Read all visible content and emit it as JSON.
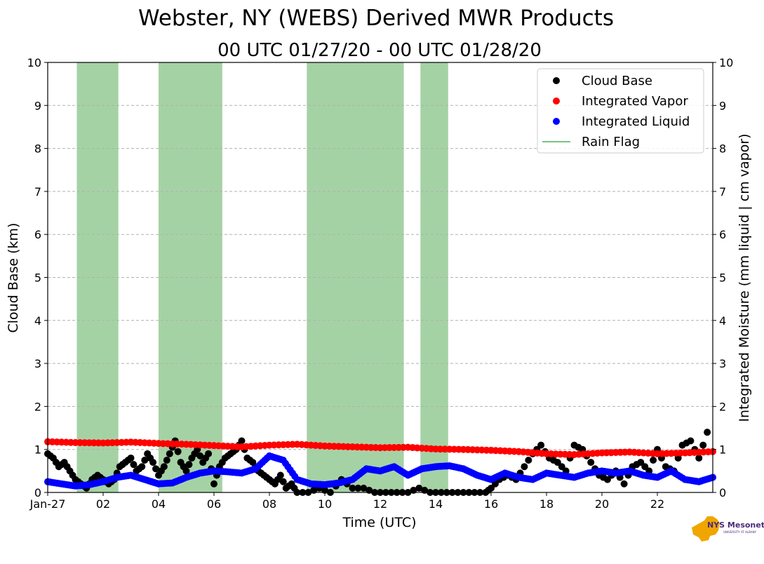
{
  "chart_data": {
    "type": "scatter",
    "title": "Webster, NY (WEBS) Derived MWR Products",
    "subtitle": "00 UTC 01/27/20 - 00 UTC 01/28/20",
    "xlabel": "Time (UTC)",
    "ylabel": "Cloud Base (km)",
    "y2label": "Integrated Moisture (mm liquid | cm vapor)",
    "xlim": [
      0,
      24
    ],
    "ylim": [
      0,
      10
    ],
    "y2lim": [
      0,
      10
    ],
    "x_tick_values": [
      0,
      2,
      4,
      6,
      8,
      10,
      12,
      14,
      16,
      18,
      20,
      22
    ],
    "x_tick_labels": [
      "Jan-27",
      "02",
      "04",
      "06",
      "08",
      "10",
      "12",
      "14",
      "16",
      "18",
      "20",
      "22"
    ],
    "y_ticks": [
      "0",
      "1",
      "2",
      "3",
      "4",
      "5",
      "6",
      "7",
      "8",
      "9",
      "10"
    ],
    "grid": "horizontal dashed",
    "legend_position": "top-right",
    "series": [
      {
        "name": "Cloud Base",
        "marker": "circle",
        "color": "#000000",
        "x": [
          0.0,
          0.2,
          0.4,
          0.6,
          0.8,
          1.0,
          1.2,
          1.4,
          1.6,
          1.8,
          2.0,
          2.2,
          2.4,
          2.6,
          2.8,
          3.0,
          3.2,
          3.4,
          3.6,
          3.8,
          4.0,
          4.2,
          4.4,
          4.6,
          4.8,
          5.0,
          5.2,
          5.4,
          5.6,
          5.8,
          6.0,
          6.2,
          6.4,
          6.6,
          6.8,
          7.0,
          7.2,
          7.4,
          7.6,
          7.8,
          8.0,
          8.2,
          8.4,
          8.6,
          8.8,
          9.0,
          9.4,
          9.8,
          10.2,
          10.6,
          11.0,
          11.4,
          11.8,
          12.2,
          12.6,
          13.0,
          13.4,
          13.8,
          14.2,
          14.6,
          15.0,
          15.4,
          15.8,
          16.0,
          16.3,
          16.6,
          16.9,
          17.2,
          17.5,
          17.8,
          18.1,
          18.4,
          18.7,
          19.0,
          19.3,
          19.6,
          19.9,
          20.2,
          20.5,
          20.8,
          21.1,
          21.4,
          21.7,
          22.0,
          22.3,
          22.6,
          22.9,
          23.2,
          23.5,
          23.8
        ],
        "y": [
          0.9,
          0.8,
          0.6,
          0.7,
          0.5,
          0.3,
          0.2,
          0.1,
          0.3,
          0.4,
          0.3,
          0.2,
          0.3,
          0.6,
          0.7,
          0.8,
          0.5,
          0.6,
          0.9,
          0.7,
          0.4,
          0.6,
          0.9,
          1.2,
          0.7,
          0.5,
          0.8,
          1.0,
          0.7,
          0.9,
          0.2,
          0.6,
          0.8,
          0.9,
          1.0,
          1.2,
          0.8,
          0.7,
          0.5,
          0.4,
          0.3,
          0.2,
          0.4,
          0.1,
          0.2,
          0.0,
          0.0,
          0.1,
          0.0,
          0.3,
          0.1,
          0.1,
          0.0,
          0.0,
          0.0,
          0.0,
          0.1,
          0.0,
          0.0,
          0.0,
          0.0,
          0.0,
          0.0,
          0.1,
          0.3,
          0.4,
          0.3,
          0.6,
          0.9,
          1.1,
          0.8,
          0.7,
          0.5,
          1.1,
          1.0,
          0.7,
          0.4,
          0.3,
          0.5,
          0.2,
          0.6,
          0.7,
          0.5,
          1.0,
          0.6,
          0.5,
          1.1,
          1.2,
          0.8,
          1.4
        ]
      },
      {
        "name": "Integrated Vapor",
        "marker": "circle",
        "color": "#ff0000",
        "x": [
          0,
          1,
          2,
          3,
          4,
          5,
          6,
          7,
          8,
          9,
          10,
          11,
          12,
          13,
          14,
          15,
          16,
          17,
          18,
          19,
          20,
          21,
          22,
          23,
          24
        ],
        "y": [
          1.18,
          1.16,
          1.15,
          1.17,
          1.14,
          1.12,
          1.09,
          1.06,
          1.1,
          1.12,
          1.08,
          1.06,
          1.04,
          1.05,
          1.01,
          1.0,
          0.98,
          0.95,
          0.9,
          0.88,
          0.92,
          0.94,
          0.9,
          0.92,
          0.95
        ]
      },
      {
        "name": "Integrated Liquid",
        "marker": "circle",
        "color": "#0000ff",
        "x": [
          0,
          0.5,
          1,
          1.5,
          2,
          2.5,
          3,
          3.5,
          4,
          4.5,
          5,
          5.5,
          6,
          6.5,
          7,
          7.5,
          8,
          8.5,
          9,
          9.5,
          10,
          10.5,
          11,
          11.5,
          12,
          12.5,
          13,
          13.5,
          14,
          14.5,
          15,
          15.5,
          16,
          16.5,
          17,
          17.5,
          18,
          18.5,
          19,
          19.5,
          20,
          20.5,
          21,
          21.5,
          22,
          22.5,
          23,
          23.5,
          24
        ],
        "y": [
          0.25,
          0.2,
          0.15,
          0.18,
          0.25,
          0.35,
          0.4,
          0.3,
          0.2,
          0.22,
          0.35,
          0.45,
          0.5,
          0.48,
          0.45,
          0.55,
          0.85,
          0.75,
          0.3,
          0.2,
          0.18,
          0.22,
          0.3,
          0.55,
          0.5,
          0.6,
          0.4,
          0.55,
          0.6,
          0.62,
          0.55,
          0.4,
          0.3,
          0.45,
          0.35,
          0.3,
          0.45,
          0.4,
          0.35,
          0.45,
          0.5,
          0.45,
          0.5,
          0.4,
          0.35,
          0.5,
          0.3,
          0.25,
          0.35
        ]
      },
      {
        "name": "Rain Flag",
        "type": "vertical-bands",
        "color": "#7fbf7f",
        "spans": [
          [
            1.05,
            2.55
          ],
          [
            4.0,
            6.3
          ],
          [
            9.35,
            12.85
          ],
          [
            13.45,
            14.45
          ]
        ]
      }
    ]
  },
  "logo": {
    "text": "NYS Mesonet",
    "subtext": "UNIVERSITY AT ALBANY",
    "color_primary": "#f0a500",
    "color_secondary": "#4b2a7b"
  }
}
